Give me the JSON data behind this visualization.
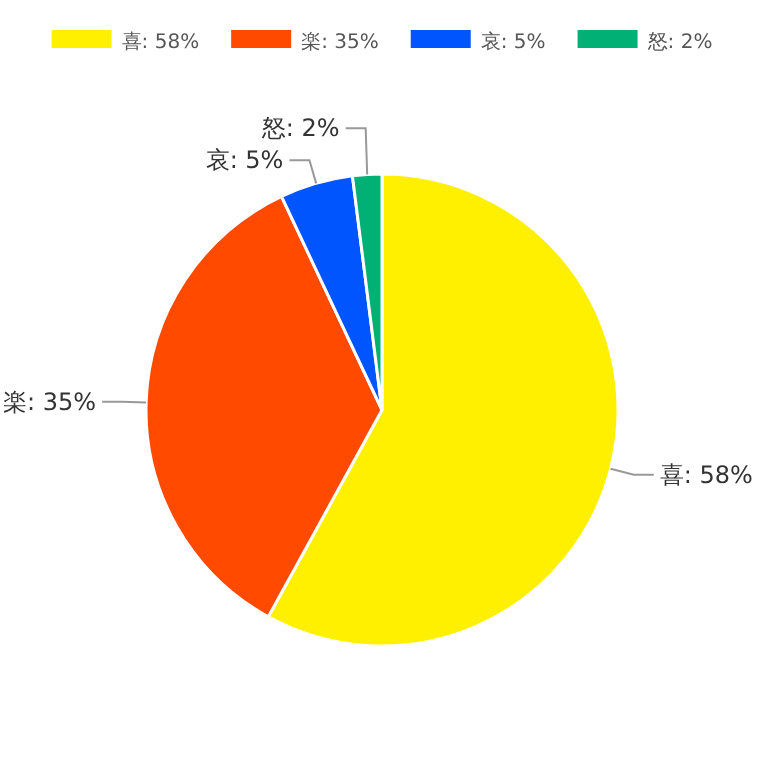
{
  "chart_data": {
    "type": "pie",
    "legend": "top",
    "categories": [
      "喜: 58%",
      "楽: 35%",
      "哀: 5%",
      "怒: 2%"
    ],
    "values": [
      58,
      35,
      5,
      2
    ],
    "colors": [
      "#fff000",
      "#ff4a00",
      "#0055ff",
      "#00b074"
    ]
  }
}
